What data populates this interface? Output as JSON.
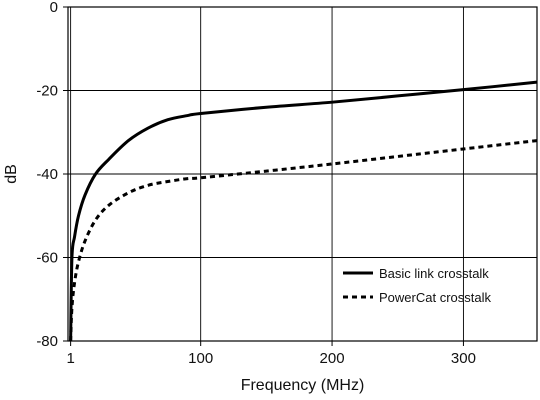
{
  "chart_data": {
    "type": "line",
    "title": "",
    "xlabel": "Frequency (MHz)",
    "ylabel": "dB",
    "xlim": [
      -1,
      356
    ],
    "ylim": [
      -80,
      0
    ],
    "xticks": [
      1,
      100,
      200,
      300
    ],
    "xtick_labels": [
      "1",
      "100",
      "200",
      "300"
    ],
    "yticks": [
      0,
      -20,
      -40,
      -60,
      -80
    ],
    "ytick_labels": [
      "0",
      "-20",
      "-40",
      "-60",
      "-80"
    ],
    "grid": true,
    "legend_position": "bottom-right",
    "series": [
      {
        "name": "Basic link crosstalk",
        "style": "solid",
        "x": [
          1,
          2,
          4,
          7,
          12,
          20,
          30,
          45,
          60,
          75,
          90,
          100,
          150,
          200,
          250,
          300,
          356
        ],
        "y": [
          -80,
          -60,
          -55,
          -50,
          -45,
          -40,
          -36.5,
          -32,
          -29,
          -27,
          -26,
          -25.5,
          -24,
          -22.8,
          -21.3,
          -19.8,
          -18
        ]
      },
      {
        "name": "PowerCat crosstalk",
        "style": "dashed",
        "x": [
          1,
          2,
          4,
          7,
          12,
          20,
          30,
          45,
          60,
          75,
          90,
          100,
          150,
          200,
          250,
          300,
          356
        ],
        "y": [
          -80,
          -72,
          -66,
          -61,
          -56,
          -51,
          -47.5,
          -44.5,
          -42.7,
          -41.8,
          -41.1,
          -40.9,
          -39.3,
          -37.6,
          -35.8,
          -34,
          -32
        ]
      }
    ]
  }
}
